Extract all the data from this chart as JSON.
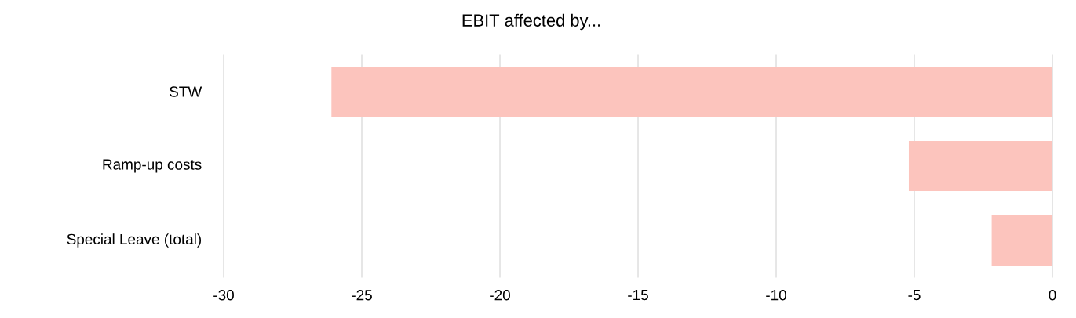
{
  "chart_data": {
    "type": "bar",
    "orientation": "horizontal",
    "title": "EBIT affected by...",
    "categories": [
      "STW",
      "Ramp-up costs",
      "Special Leave (total)"
    ],
    "values": [
      -26.1,
      -5.2,
      -2.2
    ],
    "color": "#fcc4bd",
    "xlim": [
      -30,
      0
    ],
    "xticks": [
      -30,
      -25,
      -20,
      -15,
      -10,
      -5,
      0
    ],
    "grid": "x"
  }
}
